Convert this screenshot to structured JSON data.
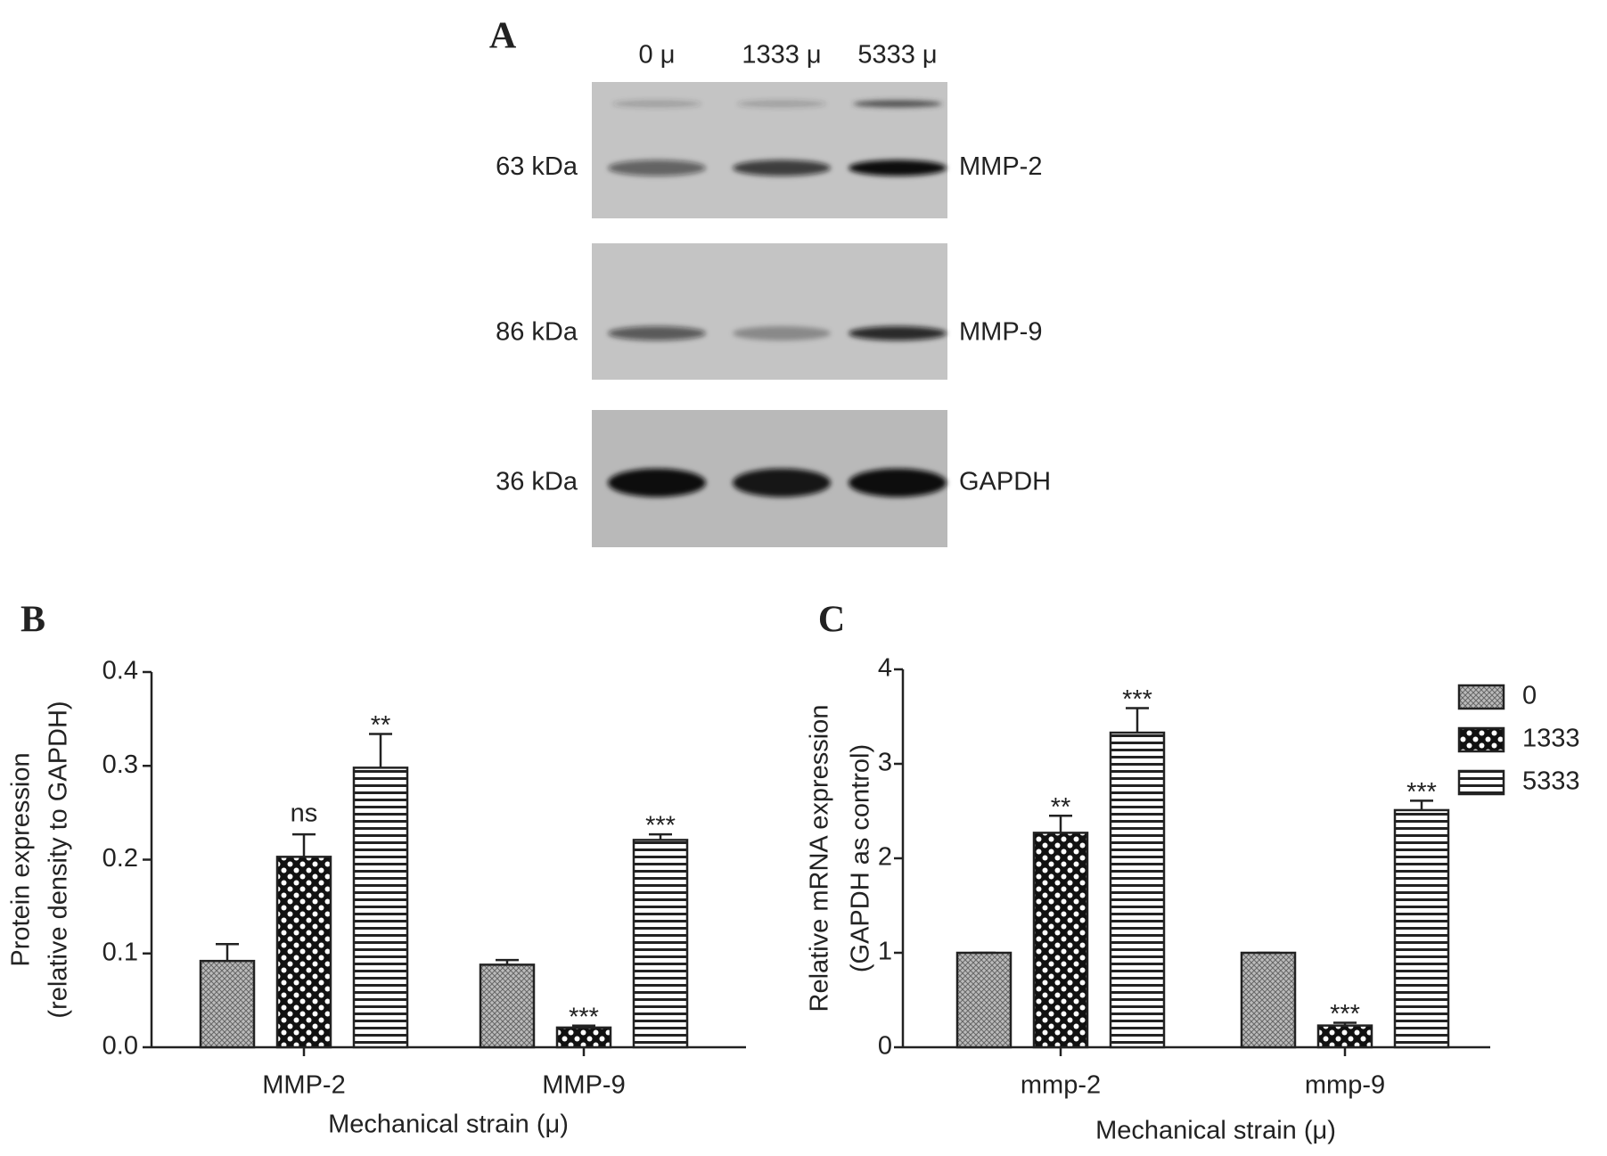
{
  "blot": {
    "label": "A",
    "lanes": [
      "0 μ",
      "1333 μ",
      "5333 μ"
    ],
    "rows": [
      {
        "marker": "63 kDa",
        "protein": "MMP-2"
      },
      {
        "marker": "86 kDa",
        "protein": "MMP-9"
      },
      {
        "marker": "36 kDa",
        "protein": "GAPDH"
      }
    ]
  },
  "chart_data": [
    {
      "type": "bar",
      "panel": "B",
      "y_label": [
        "Protein expression",
        "(relative density to GAPDH)"
      ],
      "x_label": "Mechanical strain (μ)",
      "categories": [
        "MMP-2",
        "MMP-9"
      ],
      "ylim": [
        0,
        0.4
      ],
      "yticks": [
        {
          "value": 0,
          "label": "0.0"
        },
        0.1,
        0.2,
        0.3,
        0.4
      ],
      "series": [
        {
          "pattern": "crosshatch",
          "values": [
            0.092,
            0.088
          ],
          "errors": [
            0.018,
            0.005
          ],
          "annotations": [
            null,
            null
          ]
        },
        {
          "pattern": "checker",
          "values": [
            0.203,
            0.021
          ],
          "errors": [
            0.024,
            0.002
          ],
          "annotations": [
            "ns",
            "***"
          ]
        },
        {
          "pattern": "stripes",
          "values": [
            0.298,
            0.221
          ],
          "errors": [
            0.036,
            0.006
          ],
          "annotations": [
            "**",
            "***"
          ]
        }
      ]
    },
    {
      "type": "bar",
      "panel": "C",
      "y_label": [
        "Relative mRNA expression",
        "(GAPDH as control)"
      ],
      "x_label": "Mechanical strain (μ)",
      "categories": [
        "mmp-2",
        "mmp-9"
      ],
      "ylim": [
        0,
        4
      ],
      "yticks": [
        0,
        1,
        2,
        3,
        4
      ],
      "legend": "right",
      "series": [
        {
          "name": "0",
          "pattern": "crosshatch",
          "values": [
            1.0,
            1.0
          ],
          "errors": [
            0,
            0
          ],
          "annotations": [
            null,
            null
          ]
        },
        {
          "name": "1333",
          "pattern": "checker",
          "values": [
            2.27,
            0.23
          ],
          "errors": [
            0.18,
            0.03
          ],
          "annotations": [
            "**",
            "***"
          ]
        },
        {
          "name": "5333",
          "pattern": "stripes",
          "values": [
            3.33,
            2.51
          ],
          "errors": [
            0.26,
            0.1
          ],
          "annotations": [
            "***",
            "***"
          ]
        }
      ]
    }
  ]
}
